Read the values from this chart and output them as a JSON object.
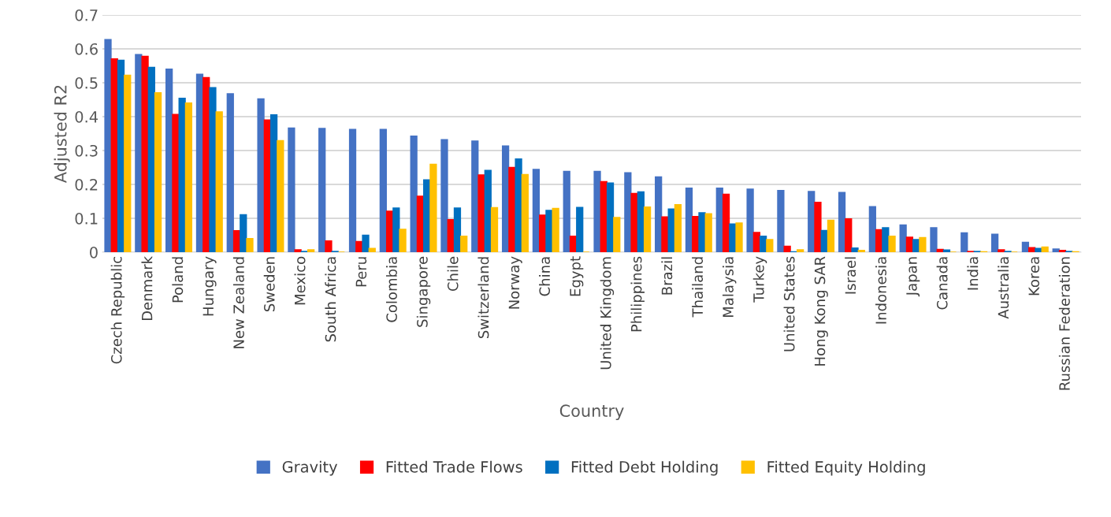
{
  "chart_data": {
    "type": "bar",
    "xlabel": "Country",
    "ylabel": "Adjusted R2",
    "categories": [
      "Czech Republic",
      "Denmark",
      "Poland",
      "Hungary",
      "New Zealand",
      "Sweden",
      "Mexico",
      "South Africa",
      "Peru",
      "Colombia",
      "Singapore",
      "Chile",
      "Switzerland",
      "Norway",
      "China",
      "Egypt",
      "United Kingdom",
      "Philippines",
      "Brazil",
      "Thailand",
      "Malaysia",
      "Turkey",
      "United States",
      "Hong Kong SAR",
      "Israel",
      "Indonesia",
      "Japan",
      "Canada",
      "India",
      "Australia",
      "Korea",
      "Russian Federation"
    ],
    "series": [
      {
        "name": "Gravity",
        "color": "#4472c4",
        "values": [
          0.627,
          0.583,
          0.54,
          0.525,
          0.467,
          0.452,
          0.366,
          0.365,
          0.362,
          0.362,
          0.342,
          0.332,
          0.328,
          0.313,
          0.244,
          0.238,
          0.238,
          0.234,
          0.222,
          0.189,
          0.189,
          0.186,
          0.182,
          0.179,
          0.176,
          0.134,
          0.08,
          0.072,
          0.057,
          0.053,
          0.029,
          0.009
        ]
      },
      {
        "name": "Fitted Trade Flows",
        "color": "#ff0000",
        "values": [
          0.57,
          0.578,
          0.406,
          0.515,
          0.063,
          0.39,
          0.007,
          0.033,
          0.031,
          0.121,
          0.165,
          0.096,
          0.228,
          0.25,
          0.109,
          0.047,
          0.208,
          0.173,
          0.104,
          0.105,
          0.171,
          0.058,
          0.017,
          0.147,
          0.098,
          0.066,
          0.044,
          0.008,
          0.002,
          0.007,
          0.013,
          0.005
        ]
      },
      {
        "name": "Fitted Debt Holding",
        "color": "#0070c0",
        "values": [
          0.566,
          0.545,
          0.454,
          0.485,
          0.11,
          0.405,
          0.002,
          0.002,
          0.05,
          0.13,
          0.213,
          0.13,
          0.241,
          0.275,
          0.123,
          0.132,
          0.204,
          0.178,
          0.127,
          0.116,
          0.083,
          0.047,
          0.001,
          0.064,
          0.012,
          0.072,
          0.037,
          0.006,
          0.002,
          0.002,
          0.011,
          0.002
        ]
      },
      {
        "name": "Fitted Equity Holding",
        "color": "#ffc000",
        "values": [
          0.522,
          0.47,
          0.44,
          0.414,
          0.04,
          0.329,
          0.007,
          0,
          0.011,
          0.067,
          0.259,
          0.047,
          0.131,
          0.229,
          0.129,
          0,
          0.102,
          0.133,
          0.14,
          0.113,
          0.086,
          0.037,
          0.007,
          0.094,
          0.005,
          0.047,
          0.043,
          0,
          0.001,
          0,
          0.015,
          0.001
        ]
      }
    ],
    "ylim": [
      0,
      0.7
    ],
    "yticks": [
      {
        "value": 0,
        "label": "0"
      },
      0.1,
      0.2,
      0.3,
      0.4,
      0.5,
      0.6,
      0.7
    ],
    "grid": "y",
    "legend": "bottom"
  }
}
